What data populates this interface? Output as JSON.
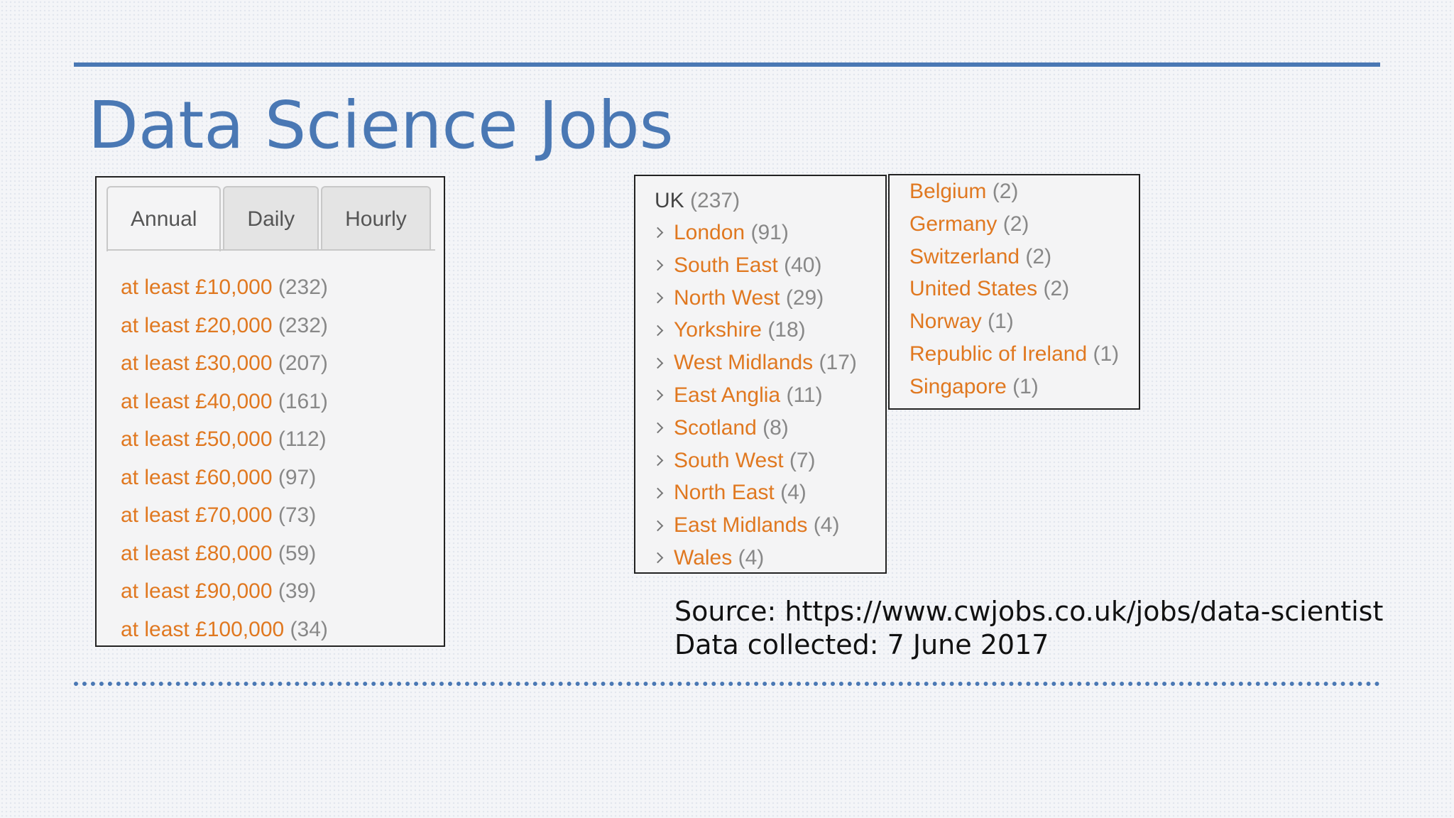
{
  "title": "Data Science Jobs",
  "salary": {
    "tabs": [
      "Annual",
      "Daily",
      "Hourly"
    ],
    "active_tab": "Annual",
    "items": [
      {
        "label": "at least £10,000",
        "count": "(232)"
      },
      {
        "label": "at least £20,000",
        "count": "(232)"
      },
      {
        "label": "at least £30,000",
        "count": "(207)"
      },
      {
        "label": "at least £40,000",
        "count": "(161)"
      },
      {
        "label": "at least £50,000",
        "count": "(112)"
      },
      {
        "label": "at least £60,000",
        "count": "(97)"
      },
      {
        "label": "at least £70,000",
        "count": "(73)"
      },
      {
        "label": "at least £80,000",
        "count": "(59)"
      },
      {
        "label": "at least £90,000",
        "count": "(39)"
      },
      {
        "label": "at least £100,000",
        "count": "(34)"
      }
    ]
  },
  "uk": {
    "label": "UK",
    "count": "(237)",
    "regions": [
      {
        "label": "London",
        "count": "(91)"
      },
      {
        "label": "South East",
        "count": "(40)"
      },
      {
        "label": "North West",
        "count": "(29)"
      },
      {
        "label": "Yorkshire",
        "count": "(18)"
      },
      {
        "label": "West Midlands",
        "count": "(17)"
      },
      {
        "label": "East Anglia",
        "count": "(11)"
      },
      {
        "label": "Scotland",
        "count": "(8)"
      },
      {
        "label": "South West",
        "count": "(7)"
      },
      {
        "label": "North East",
        "count": "(4)"
      },
      {
        "label": "East Midlands",
        "count": "(4)"
      },
      {
        "label": "Wales",
        "count": "(4)"
      }
    ]
  },
  "international": [
    {
      "label": "Belgium",
      "count": "(2)"
    },
    {
      "label": "Germany",
      "count": "(2)"
    },
    {
      "label": "Switzerland",
      "count": "(2)"
    },
    {
      "label": "United States",
      "count": "(2)"
    },
    {
      "label": "Norway",
      "count": "(1)"
    },
    {
      "label": "Republic of Ireland",
      "count": "(1)"
    },
    {
      "label": "Singapore",
      "count": "(1)"
    }
  ],
  "source": {
    "line1": "Source: https://www.cwjobs.co.uk/jobs/data-scientist",
    "line2": "Data collected: 7 June 2017"
  },
  "colors": {
    "title": "#4a78b4",
    "link": "#e07820",
    "count": "#888888",
    "rule": "#4a78b4"
  }
}
